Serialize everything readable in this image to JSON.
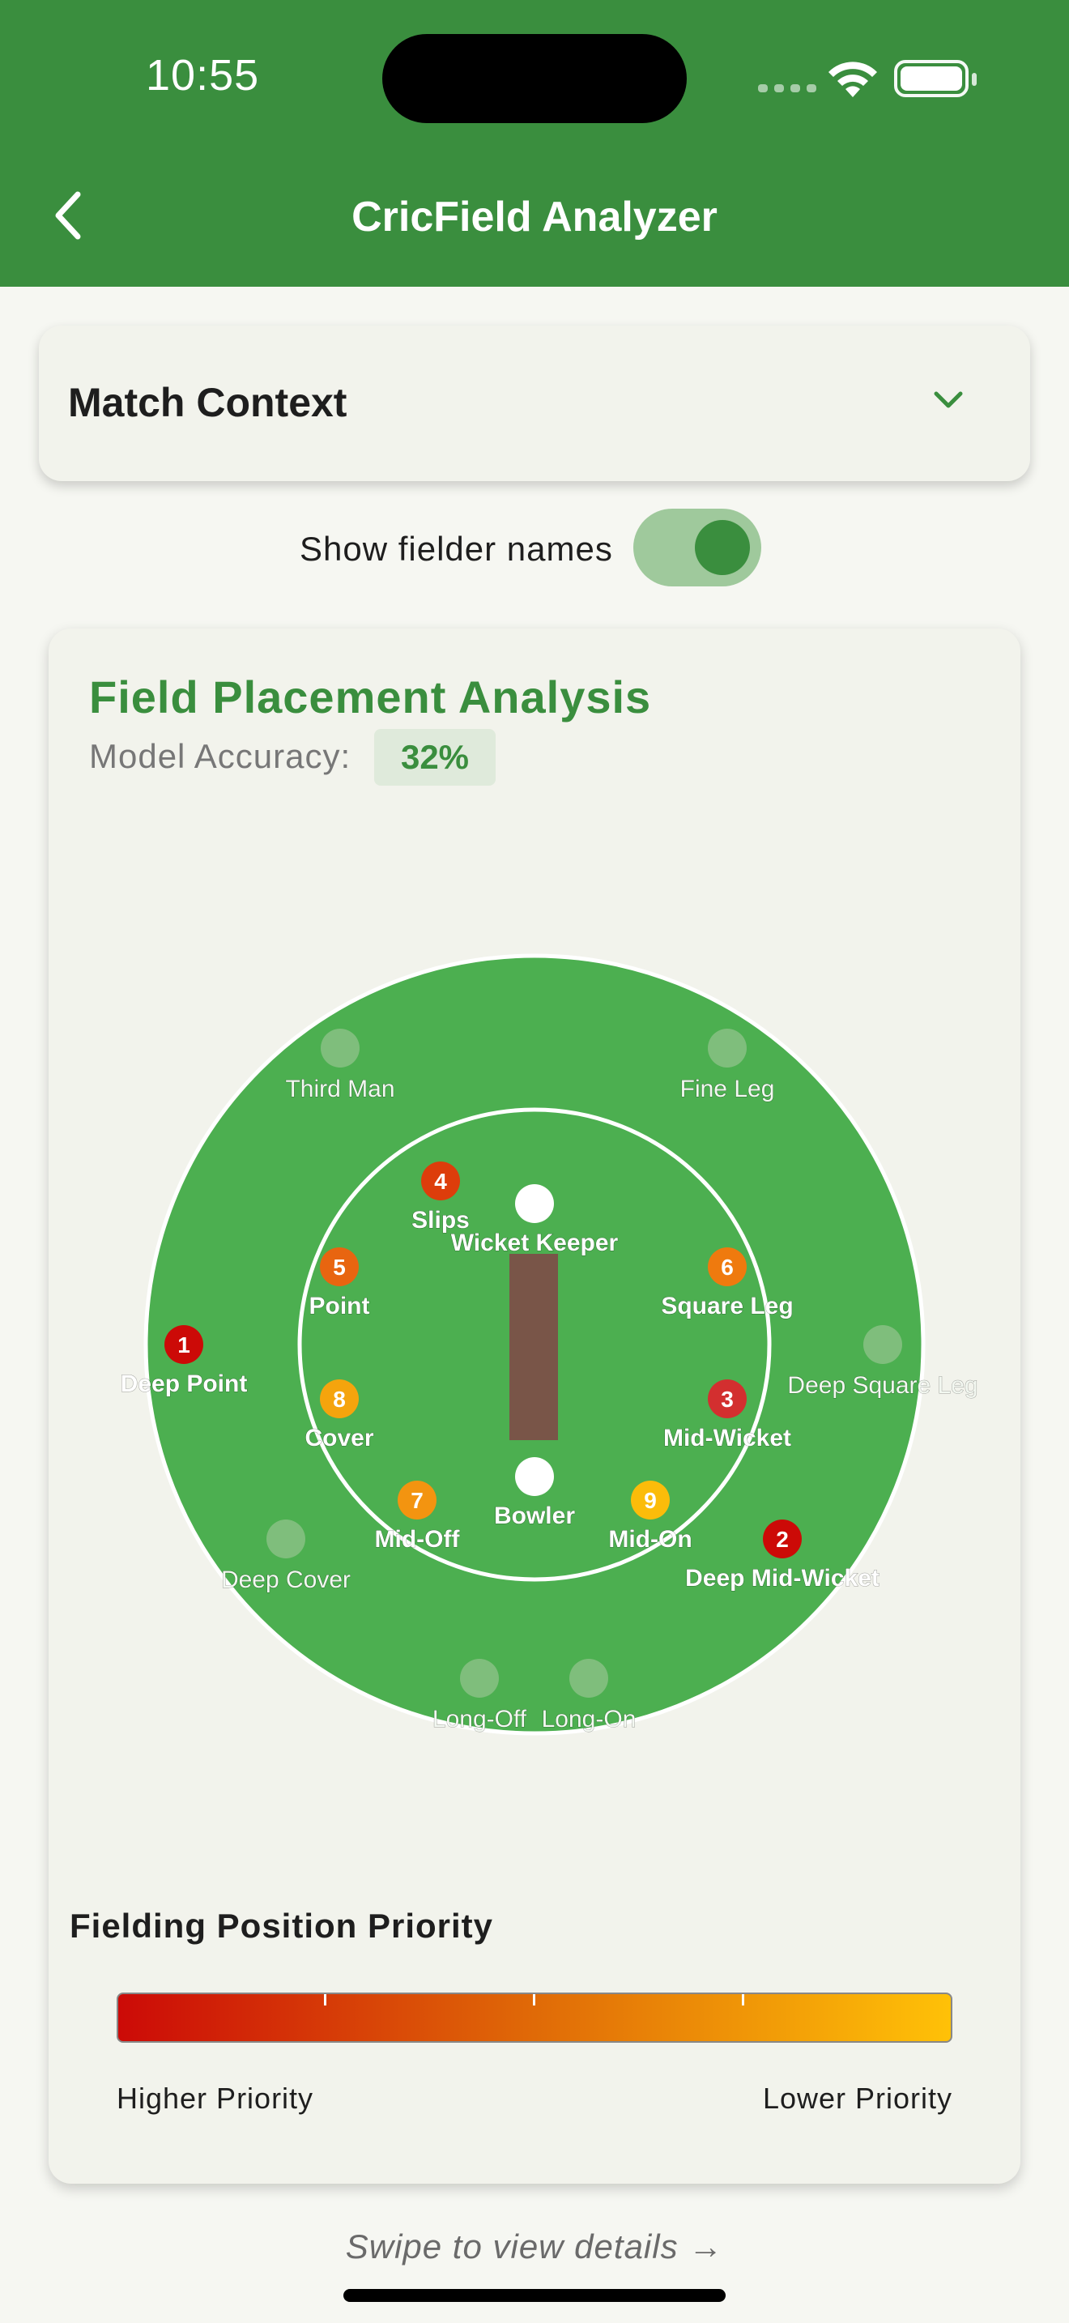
{
  "status": {
    "time": "10:55"
  },
  "header": {
    "title": "CricField Analyzer",
    "back_icon": "chevron-left-icon"
  },
  "match_context": {
    "title": "Match Context",
    "expand_icon": "chevron-down-icon"
  },
  "toggle": {
    "label": "Show fielder names",
    "on": true
  },
  "analysis": {
    "title": "Field Placement Analysis",
    "accuracy_label": "Model Accuracy:",
    "accuracy_value": "32%"
  },
  "field": {
    "colors": {
      "outfield": "#4caf50",
      "pitch": "#795548",
      "ring": "#ffffff",
      "inactive": "#7fbe7c"
    },
    "marker_colors": {
      "1": "#cc0a07",
      "2": "#cc0a07",
      "3": "#d32f2f",
      "4": "#dd3d0b",
      "5": "#e86510",
      "6": "#ef7a0e",
      "7": "#f39410",
      "8": "#f5a40d",
      "9": "#fbbc0a"
    },
    "stumps": [
      {
        "label": "Wicket Keeper"
      },
      {
        "label": "Bowler"
      }
    ],
    "active_positions": [
      {
        "rank": "1",
        "label": "Deep Point"
      },
      {
        "rank": "2",
        "label": "Deep Mid-Wicket"
      },
      {
        "rank": "3",
        "label": "Mid-Wicket"
      },
      {
        "rank": "4",
        "label": "Slips"
      },
      {
        "rank": "5",
        "label": "Point"
      },
      {
        "rank": "6",
        "label": "Square Leg"
      },
      {
        "rank": "7",
        "label": "Mid-Off"
      },
      {
        "rank": "8",
        "label": "Cover"
      },
      {
        "rank": "9",
        "label": "Mid-On"
      }
    ],
    "inactive_positions": [
      {
        "label": "Third Man"
      },
      {
        "label": "Fine Leg"
      },
      {
        "label": "Deep Square Leg"
      },
      {
        "label": "Deep Cover"
      },
      {
        "label": "Long-Off"
      },
      {
        "label": "Long-On"
      }
    ]
  },
  "priority": {
    "title": "Fielding Position Priority",
    "high_label": "Higher Priority",
    "low_label": "Lower Priority",
    "gradient": [
      "#cc0a07",
      "#e06a07",
      "#ffc107"
    ]
  },
  "footer": {
    "swipe_hint": "Swipe to view details →"
  }
}
